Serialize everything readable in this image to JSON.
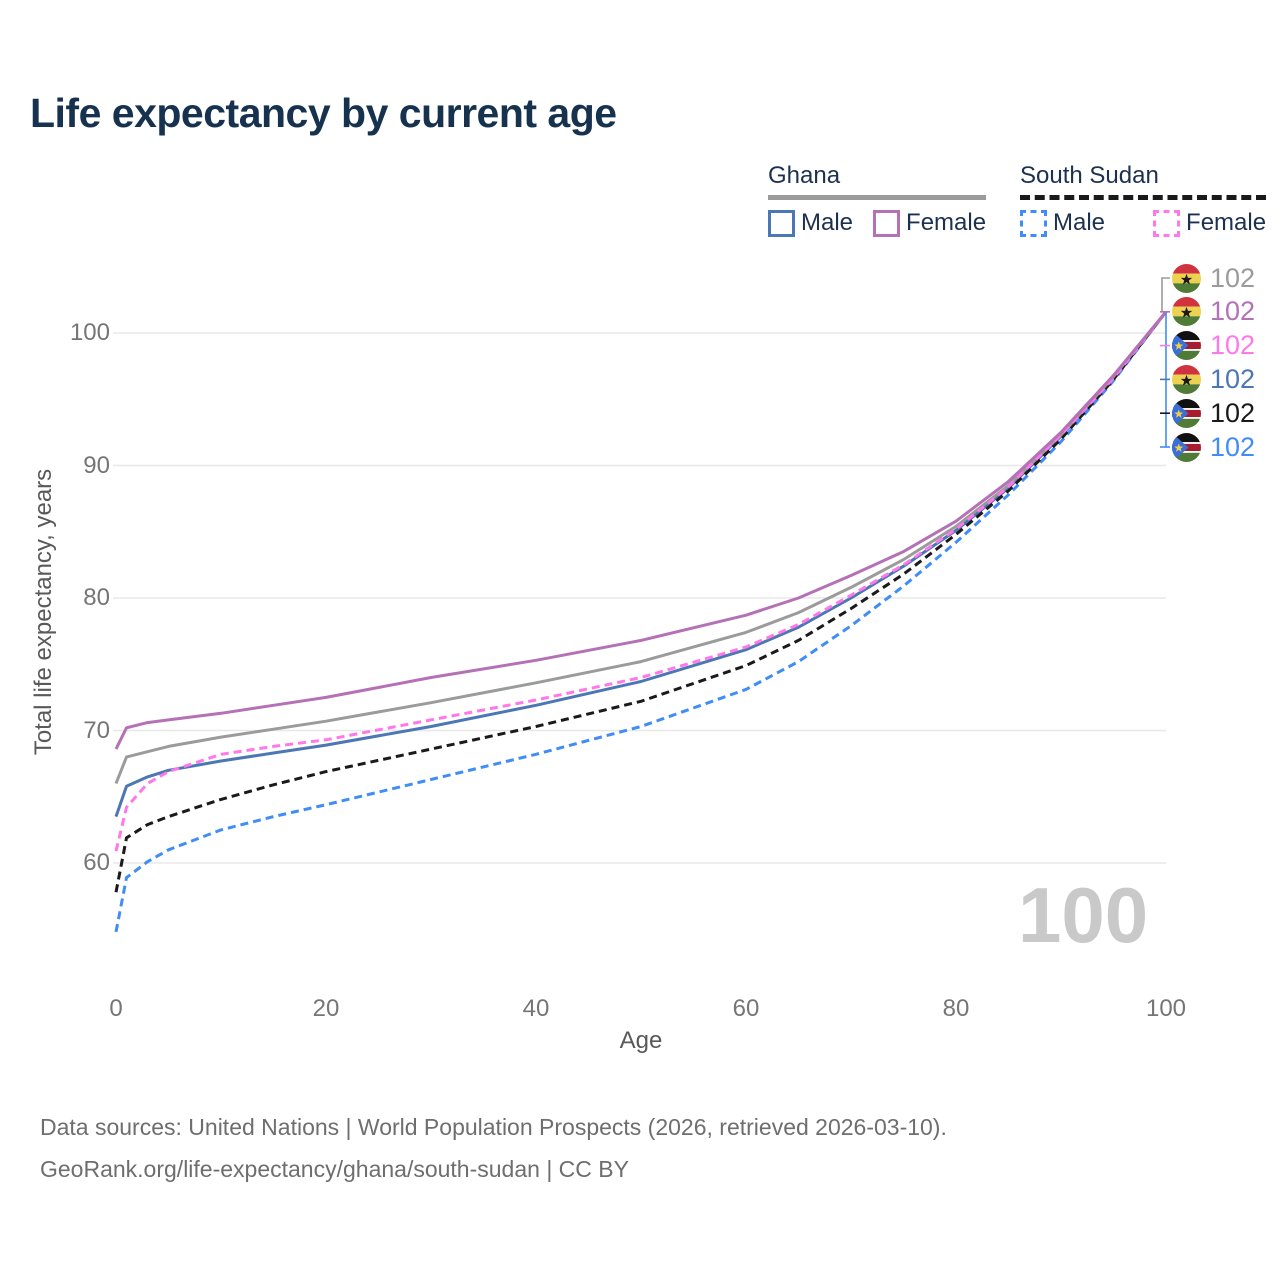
{
  "title": "Life expectancy by current age",
  "legend": {
    "groups": [
      {
        "name": "Ghana",
        "line_style": "solid",
        "underline_color": "#9b9b9b",
        "items": [
          {
            "label": "Male",
            "color": "#4b77b5"
          },
          {
            "label": "Female",
            "color": "#b471b5"
          }
        ]
      },
      {
        "name": "South Sudan",
        "line_style": "dashed",
        "underline_color": "#1a1a1a",
        "items": [
          {
            "label": "Male",
            "color": "#3f8df5"
          },
          {
            "label": "Female",
            "color": "#ff77ea"
          }
        ]
      }
    ]
  },
  "chart_data": {
    "type": "line",
    "title": "Life expectancy by current age",
    "xlabel": "Age",
    "ylabel": "Total life expectancy, years",
    "xlim": [
      0,
      100
    ],
    "ylim": [
      54,
      102
    ],
    "x_ticks": [
      0,
      20,
      40,
      60,
      80,
      100
    ],
    "y_ticks": [
      60,
      70,
      80,
      90,
      100
    ],
    "grid": "horizontal",
    "legend_position": "top-right",
    "ages": [
      0,
      1,
      3,
      5,
      10,
      15,
      20,
      30,
      40,
      50,
      60,
      65,
      70,
      75,
      80,
      85,
      90,
      95,
      100
    ],
    "series": [
      {
        "name": "South Sudan — male",
        "country": "South Sudan",
        "sex": "male",
        "color": "#3f8df5",
        "dashed": true,
        "values": [
          54.8,
          58.9,
          60.1,
          61.0,
          62.5,
          63.5,
          64.4,
          66.3,
          68.2,
          70.3,
          73.1,
          75.2,
          77.9,
          80.9,
          84.2,
          87.8,
          91.8,
          96.4,
          101.6
        ]
      },
      {
        "name": "Ghana — male",
        "country": "Ghana",
        "sex": "male",
        "color": "#4b77b5",
        "dashed": false,
        "values": [
          63.5,
          65.8,
          66.5,
          67.0,
          67.7,
          68.3,
          68.9,
          70.3,
          71.9,
          73.7,
          76.1,
          77.8,
          80.0,
          82.4,
          85.1,
          88.3,
          92.2,
          96.6,
          101.6
        ]
      },
      {
        "name": "South Sudan — both sexes",
        "country": "South Sudan",
        "sex": "both",
        "color": "#1a1a1a",
        "dashed": true,
        "values": [
          57.8,
          61.9,
          62.9,
          63.5,
          64.8,
          65.9,
          66.9,
          68.6,
          70.3,
          72.2,
          74.9,
          76.8,
          79.2,
          81.8,
          84.8,
          88.1,
          92.0,
          96.5,
          101.6
        ]
      },
      {
        "name": "Ghana — both sexes",
        "country": "Ghana",
        "sex": "both",
        "color": "#9b9b9b",
        "dashed": false,
        "values": [
          66.0,
          68.0,
          68.4,
          68.8,
          69.5,
          70.1,
          70.7,
          72.1,
          73.6,
          75.2,
          77.4,
          78.9,
          80.8,
          82.9,
          85.4,
          88.5,
          92.3,
          96.7,
          101.6
        ]
      },
      {
        "name": "South Sudan — female",
        "country": "South Sudan",
        "sex": "female",
        "color": "#ff77ea",
        "dashed": true,
        "values": [
          60.9,
          64.2,
          66.0,
          66.9,
          68.2,
          68.8,
          69.3,
          70.8,
          72.3,
          74.0,
          76.3,
          78.0,
          80.2,
          82.5,
          85.2,
          88.4,
          92.3,
          96.6,
          101.6
        ]
      },
      {
        "name": "Ghana — female",
        "country": "Ghana",
        "sex": "female",
        "color": "#b471b5",
        "dashed": false,
        "values": [
          68.6,
          70.2,
          70.6,
          70.8,
          71.3,
          71.9,
          72.5,
          74.0,
          75.3,
          76.8,
          78.7,
          80.0,
          81.7,
          83.5,
          85.8,
          88.8,
          92.5,
          96.8,
          101.6
        ]
      }
    ],
    "end_labels": [
      {
        "flag": "ghana",
        "value": "102",
        "color": "#9b9b9b"
      },
      {
        "flag": "ghana",
        "value": "102",
        "color": "#b471b5"
      },
      {
        "flag": "south-sudan",
        "value": "102",
        "color": "#ff77ea"
      },
      {
        "flag": "ghana",
        "value": "102",
        "color": "#4b77b5"
      },
      {
        "flag": "south-sudan",
        "value": "102",
        "color": "#1a1a1a"
      },
      {
        "flag": "south-sudan",
        "value": "102",
        "color": "#3f8df5"
      }
    ]
  },
  "age_indicator": "100",
  "footer": {
    "line1": "Data sources: United Nations | World Population Prospects (2026, retrieved 2026-03-10).",
    "line2": "GeoRank.org/life-expectancy/ghana/south-sudan | CC BY"
  },
  "colors": {
    "title": "#17324e",
    "grid": "#e8e8e8",
    "tick_text": "#757575",
    "axis_label_text": "#595959",
    "age_indicator": "#c9c9c9",
    "footer_text": "#6e6e6e"
  }
}
